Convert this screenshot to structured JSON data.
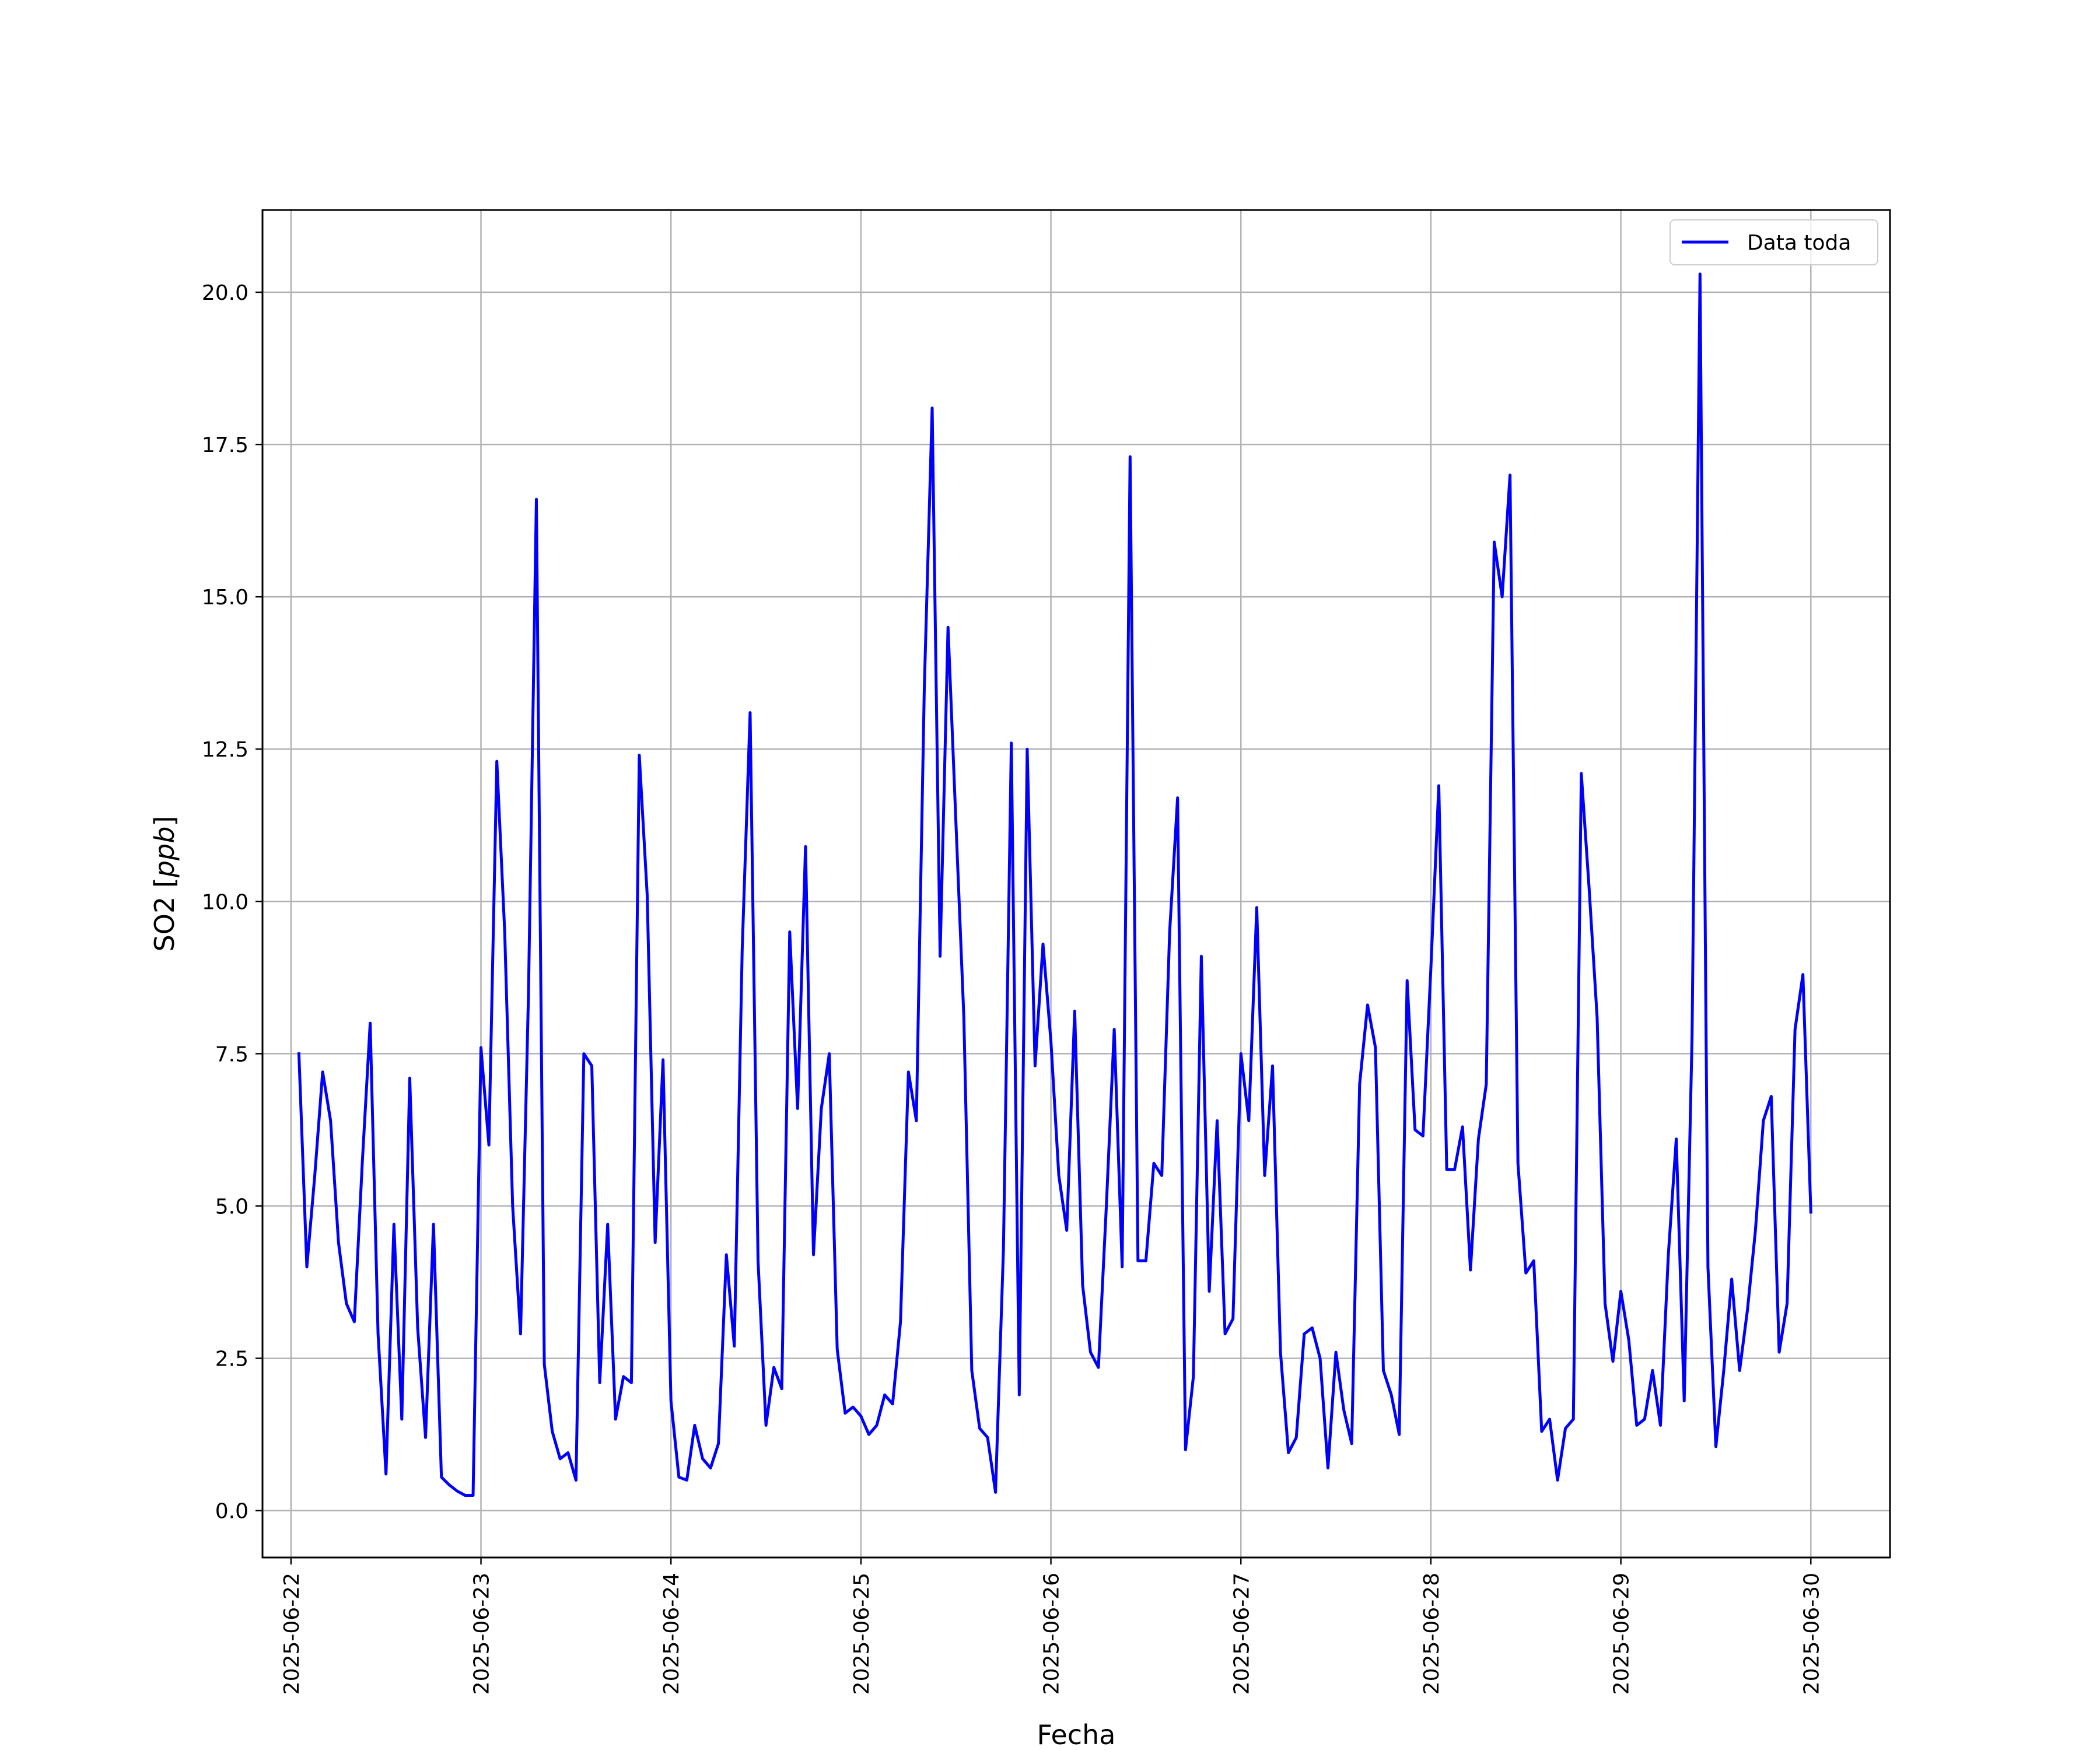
{
  "chart_data": {
    "type": "line",
    "title": "",
    "xlabel": "Fecha",
    "ylabel": "SO2 [ppb]",
    "ylabel_parts": {
      "prefix": "SO2 [",
      "unit": "ppb",
      "suffix": "]"
    },
    "xlim": [
      "2025-06-21 20:24",
      "2025-06-30 10:00"
    ],
    "ylim": [
      -0.77,
      21.35
    ],
    "x_ticks": [
      "2025-06-22",
      "2025-06-23",
      "2025-06-24",
      "2025-06-25",
      "2025-06-26",
      "2025-06-27",
      "2025-06-28",
      "2025-06-29",
      "2025-06-30"
    ],
    "y_ticks": [
      0.0,
      2.5,
      5.0,
      7.5,
      10.0,
      12.5,
      15.0,
      17.5,
      20.0
    ],
    "y_tick_labels": [
      "0.0",
      "2.5",
      "5.0",
      "7.5",
      "10.0",
      "12.5",
      "15.0",
      "17.5",
      "20.0"
    ],
    "grid": true,
    "legend_position": "top-right",
    "series": [
      {
        "name": "Data toda",
        "color": "#0000ff",
        "start": "2025-06-22 01:00",
        "interval_hours": 1,
        "values": [
          7.5,
          4.0,
          5.5,
          7.2,
          6.4,
          4.4,
          3.4,
          3.1,
          5.7,
          8.0,
          2.9,
          0.6,
          4.7,
          1.5,
          7.1,
          3.0,
          1.2,
          4.7,
          0.55,
          0.42,
          0.32,
          0.25,
          0.25,
          7.6,
          6.0,
          12.3,
          9.5,
          5.0,
          2.9,
          8.5,
          16.6,
          2.4,
          1.3,
          0.85,
          0.95,
          0.5,
          7.5,
          7.3,
          2.1,
          4.7,
          1.5,
          2.2,
          2.1,
          12.4,
          10.1,
          4.4,
          7.4,
          1.8,
          0.55,
          0.5,
          1.4,
          0.85,
          0.7,
          1.1,
          4.2,
          2.7,
          9.2,
          13.1,
          4.1,
          1.4,
          2.35,
          2.0,
          9.5,
          6.6,
          10.9,
          4.2,
          6.6,
          7.5,
          2.65,
          1.6,
          1.7,
          1.55,
          1.25,
          1.4,
          1.9,
          1.75,
          3.1,
          7.2,
          6.4,
          13.5,
          18.1,
          9.1,
          14.5,
          11.3,
          8.1,
          2.3,
          1.35,
          1.2,
          0.3,
          4.3,
          12.6,
          1.9,
          12.5,
          7.3,
          9.3,
          7.7,
          5.5,
          4.6,
          8.2,
          3.7,
          2.6,
          2.35,
          5.0,
          7.9,
          4.0,
          17.3,
          4.1,
          4.1,
          5.7,
          5.5,
          9.5,
          11.7,
          1.0,
          2.2,
          9.1,
          3.6,
          6.4,
          2.9,
          3.15,
          7.5,
          6.4,
          9.9,
          5.5,
          7.3,
          2.6,
          0.95,
          1.2,
          2.9,
          3.0,
          2.5,
          0.7,
          2.6,
          1.65,
          1.1,
          7.0,
          8.3,
          7.6,
          2.3,
          1.9,
          1.25,
          8.7,
          6.25,
          6.15,
          8.9,
          11.9,
          5.6,
          5.6,
          6.3,
          3.95,
          6.1,
          7.0,
          15.9,
          15.0,
          17.0,
          5.7,
          3.9,
          4.1,
          1.3,
          1.5,
          0.5,
          1.35,
          1.5,
          12.1,
          10.2,
          8.1,
          3.4,
          2.45,
          3.6,
          2.8,
          1.4,
          1.5,
          2.3,
          1.4,
          4.2,
          6.1,
          1.8,
          7.8,
          20.3,
          4.0,
          1.05,
          2.3,
          3.8,
          2.3,
          3.3,
          4.6,
          6.4,
          6.8,
          2.6,
          3.4,
          7.9,
          8.8,
          4.9
        ]
      }
    ]
  }
}
